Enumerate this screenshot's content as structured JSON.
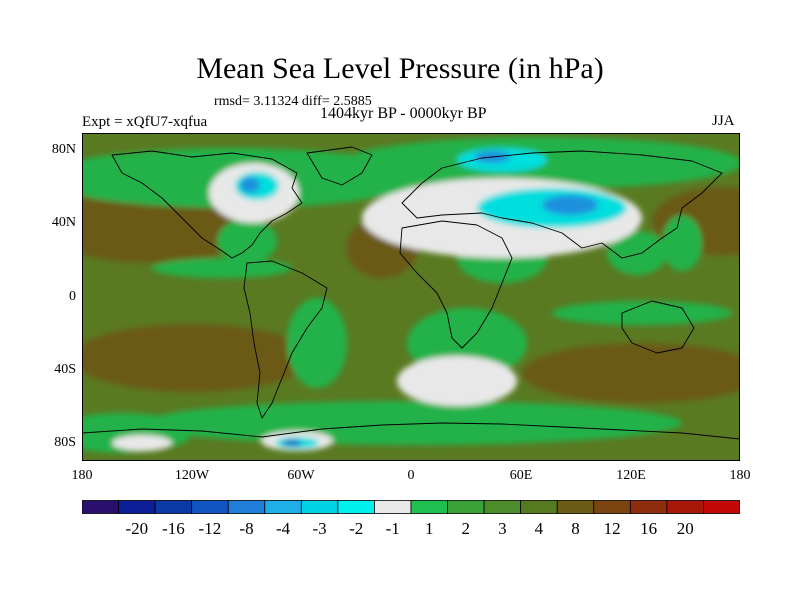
{
  "title": "Mean Sea Level Pressure (in hPa)",
  "stats": "rmsd= 3.11324  diff= 2.5885",
  "experiment": "Expt = xQfU7-xqfua",
  "period": "1404kyr BP - 0000kyr BP",
  "season": "JJA",
  "lat_ticks": [
    "80N",
    "40N",
    "0",
    "40S",
    "80S"
  ],
  "lon_ticks": [
    "180",
    "120W",
    "60W",
    "0",
    "60E",
    "120E",
    "180"
  ],
  "colorbar": {
    "colors": [
      "#2a0f6e",
      "#0c1f96",
      "#0b3aa6",
      "#1155c2",
      "#1f7fd8",
      "#1faee8",
      "#00d2e6",
      "#00f0ef",
      "#e8e8e8",
      "#20c050",
      "#39a33a",
      "#4d8c2a",
      "#557a1f",
      "#6b5a14",
      "#7c4410",
      "#8e2d0d",
      "#a8170a",
      "#c4080a"
    ],
    "labels": [
      "-20",
      "-16",
      "-12",
      "-8",
      "-4",
      "-3",
      "-2",
      "-1",
      "1",
      "2",
      "3",
      "4",
      "8",
      "12",
      "16",
      "20"
    ]
  },
  "palette": {
    "background": "#5a7a22",
    "green": "#20b24a",
    "dark_green": "#4a8a2c",
    "brown": "#6a5a18",
    "white": "#e8e8e8",
    "cyan": "#00dede",
    "blue": "#1f90dd",
    "deep_blue": "#1155c2"
  }
}
